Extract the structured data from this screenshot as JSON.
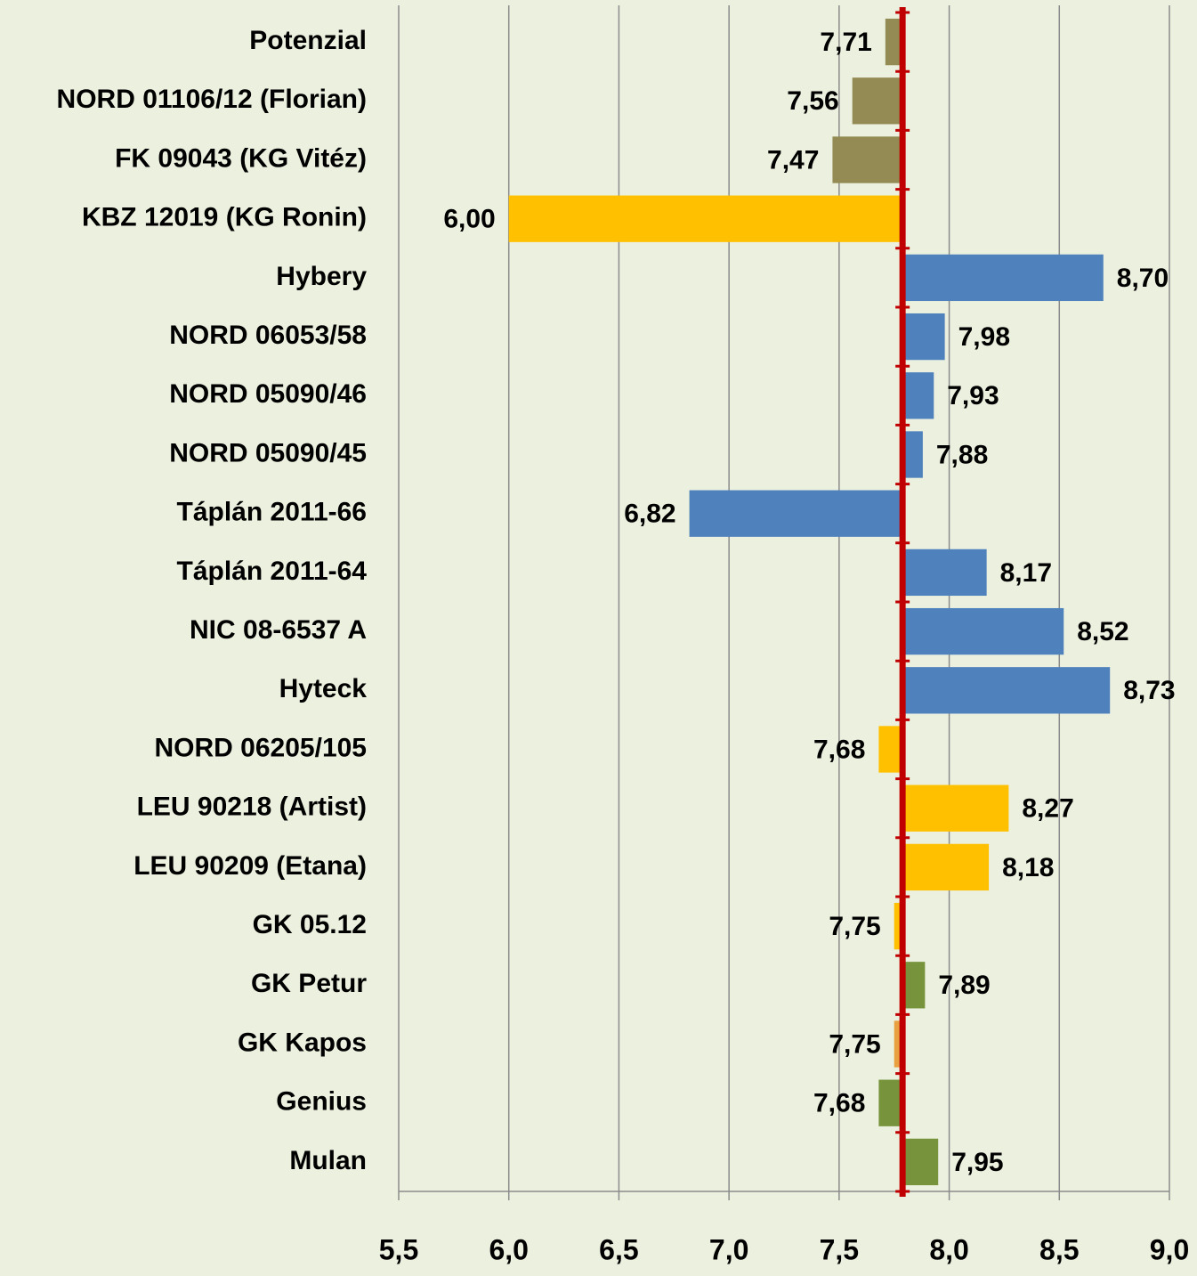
{
  "chart_data": {
    "type": "bar",
    "orientation": "horizontal",
    "categories": [
      "Potenzial",
      "NORD 01106/12 (Florian)",
      "FK 09043 (KG Vitéz)",
      "KBZ 12019 (KG Ronin)",
      "Hybery",
      "NORD 06053/58",
      "NORD 05090/46",
      "NORD 05090/45",
      "Táplán 2011-66",
      "Táplán 2011-64",
      "NIC 08-6537 A",
      "Hyteck",
      "NORD 06205/105",
      "LEU 90218 (Artist)",
      "LEU 90209 (Etana)",
      "GK 05.12",
      "GK Petur",
      "GK Kapos",
      "Genius",
      "Mulan"
    ],
    "values": [
      7.71,
      7.56,
      7.47,
      6.0,
      8.7,
      7.98,
      7.93,
      7.88,
      6.82,
      8.17,
      8.52,
      8.73,
      7.68,
      8.27,
      8.18,
      7.75,
      7.89,
      7.75,
      7.68,
      7.95
    ],
    "value_labels": [
      "7,71",
      "7,56",
      "7,47",
      "6,00",
      "8,70",
      "7,98",
      "7,93",
      "7,88",
      "6,82",
      "8,17",
      "8,52",
      "8,73",
      "7,68",
      "8,27",
      "8,18",
      "7,75",
      "7,89",
      "7,75",
      "7,68",
      "7,95"
    ],
    "colors": [
      "#948a54",
      "#948a54",
      "#948a54",
      "#ffc000",
      "#4f81bd",
      "#4f81bd",
      "#4f81bd",
      "#4f81bd",
      "#4f81bd",
      "#4f81bd",
      "#4f81bd",
      "#4f81bd",
      "#ffc000",
      "#ffc000",
      "#ffc000",
      "#ffc000",
      "#77933c",
      "#e8a040",
      "#77933c",
      "#77933c"
    ],
    "reference_line": 7.78,
    "reference_color": "#c00000",
    "xlim": [
      5.5,
      9.0
    ],
    "xticks": [
      {
        "value": 5.5,
        "label": "5,5"
      },
      {
        "value": 6.0,
        "label": "6,0"
      },
      {
        "value": 6.5,
        "label": "6,5"
      },
      {
        "value": 7.0,
        "label": "7,0"
      },
      {
        "value": 7.5,
        "label": "7,5"
      },
      {
        "value": 8.0,
        "label": "8,0"
      },
      {
        "value": 8.5,
        "label": "8,5"
      },
      {
        "value": 9.0,
        "label": "9,0"
      }
    ],
    "grid": true
  }
}
